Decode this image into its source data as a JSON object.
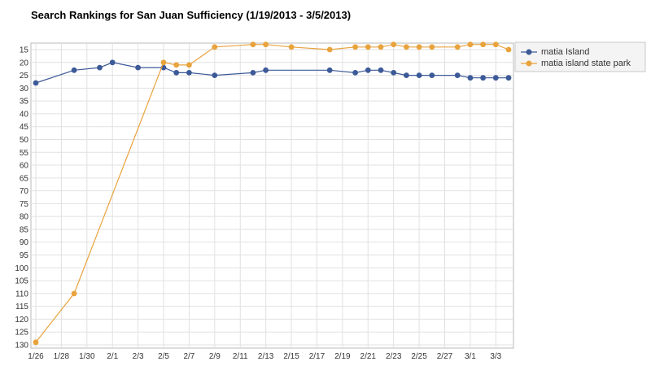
{
  "chart_data": {
    "type": "line",
    "title": "Search Rankings for San Juan Sufficiency (1/19/2013 - 3/5/2013)",
    "xlabel": "",
    "ylabel": "",
    "y_reversed": true,
    "ylim": [
      12,
      130
    ],
    "x_tick_labels": [
      "1/26",
      "1/28",
      "1/30",
      "2/1",
      "2/3",
      "2/5",
      "2/7",
      "2/9",
      "2/11",
      "2/13",
      "2/15",
      "2/17",
      "2/19",
      "2/21",
      "2/23",
      "2/25",
      "2/27",
      "3/1",
      "3/3"
    ],
    "y_tick_labels": [
      "15",
      "20",
      "25",
      "30",
      "35",
      "40",
      "45",
      "50",
      "55",
      "60",
      "65",
      "70",
      "75",
      "80",
      "85",
      "90",
      "95",
      "100",
      "105",
      "110",
      "115",
      "120",
      "125",
      "130"
    ],
    "x_range": [
      "1/26",
      "3/4"
    ],
    "grid": true,
    "legend_position": "top-right",
    "series": [
      {
        "name": "matia Island",
        "color": "#3d5a98",
        "points": [
          [
            "1/26",
            28
          ],
          [
            "1/29",
            23
          ],
          [
            "1/31",
            22
          ],
          [
            "2/1",
            20
          ],
          [
            "2/3",
            22
          ],
          [
            "2/5",
            22
          ],
          [
            "2/6",
            24
          ],
          [
            "2/7",
            24
          ],
          [
            "2/9",
            25
          ],
          [
            "2/12",
            24
          ],
          [
            "2/13",
            23
          ],
          [
            "2/18",
            23
          ],
          [
            "2/20",
            24
          ],
          [
            "2/21",
            23
          ],
          [
            "2/22",
            23
          ],
          [
            "2/23",
            24
          ],
          [
            "2/24",
            25
          ],
          [
            "2/25",
            25
          ],
          [
            "2/26",
            25
          ],
          [
            "2/28",
            25
          ],
          [
            "3/1",
            26
          ],
          [
            "3/2",
            26
          ],
          [
            "3/3",
            26
          ],
          [
            "3/4",
            26
          ]
        ]
      },
      {
        "name": "matia island state park",
        "color": "#e8a33d",
        "points": [
          [
            "1/26",
            129
          ],
          [
            "1/29",
            110
          ],
          [
            "2/5",
            20
          ],
          [
            "2/6",
            21
          ],
          [
            "2/7",
            21
          ],
          [
            "2/9",
            14
          ],
          [
            "2/12",
            13
          ],
          [
            "2/13",
            13
          ],
          [
            "2/15",
            14
          ],
          [
            "2/18",
            15
          ],
          [
            "2/20",
            14
          ],
          [
            "2/21",
            14
          ],
          [
            "2/22",
            14
          ],
          [
            "2/23",
            13
          ],
          [
            "2/24",
            14
          ],
          [
            "2/25",
            14
          ],
          [
            "2/26",
            14
          ],
          [
            "2/28",
            14
          ],
          [
            "3/1",
            13
          ],
          [
            "3/2",
            13
          ],
          [
            "3/3",
            13
          ],
          [
            "3/4",
            15
          ]
        ]
      }
    ]
  }
}
